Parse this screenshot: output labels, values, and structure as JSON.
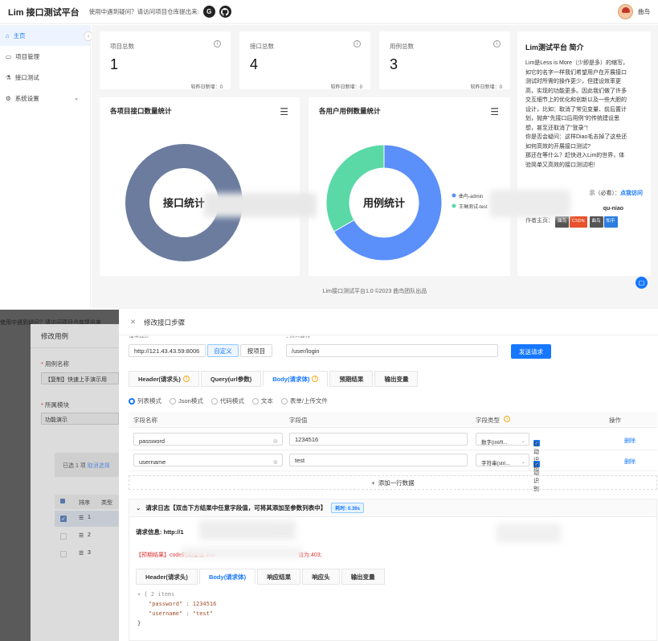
{
  "app": {
    "title": "Lim 接口测试平台",
    "tip": "使用中遇到疑问？请访问项目仓库提出来:",
    "github_glyph": "G",
    "user": "曲鸟"
  },
  "sidebar": {
    "collapse_glyph": "‹",
    "items": [
      {
        "icon": "⌂",
        "label": "主页",
        "icon_name": "home-icon"
      },
      {
        "icon": "▭",
        "label": "项目管理",
        "icon_name": "project-icon"
      },
      {
        "icon": "⚗",
        "label": "接口测试",
        "icon_name": "api-test-icon"
      },
      {
        "icon": "⚙",
        "label": "系统设置",
        "icon_name": "settings-icon",
        "arrow": "⌄"
      }
    ]
  },
  "stats": [
    {
      "title": "项目总数",
      "value": "1",
      "foot": "较昨日新增：0"
    },
    {
      "title": "接口总数",
      "value": "4",
      "foot": "较昨日新增：0"
    },
    {
      "title": "用例总数",
      "value": "3",
      "foot": "较昨日新增：0"
    }
  ],
  "info_glyph": "i",
  "charts": [
    {
      "title": "各项目接口数量统计",
      "center": "接口统计",
      "menu": "☰"
    },
    {
      "title": "各用户用例数量统计",
      "center": "用例统计",
      "menu": "☰",
      "legend": [
        "曲鸟-admin",
        "王琳测试-test"
      ]
    }
  ],
  "chart_data": [
    {
      "type": "pie",
      "title": "各项目接口数量统计",
      "labels": [
        ""
      ],
      "values": [
        4
      ],
      "colors": [
        "#6b7c9e"
      ]
    },
    {
      "type": "pie",
      "title": "各用户用例数量统计",
      "labels": [
        "曲鸟-admin",
        "王琳测试-test"
      ],
      "values": [
        2,
        1
      ],
      "colors": [
        "#5b8ff9",
        "#5ad8a6"
      ]
    }
  ],
  "intro": {
    "title": "Lim测试平台 简介",
    "lines": [
      "Lim是Less is More（少即是多）的缩写，",
      "如它的名字一样我们希望用户在开展接口",
      "测试时所需的操作更少，但建设效率更",
      "高，实现的功能更多。因此我们做了许多",
      "交互细节上的优化和创新以及一些大胆的",
      "设计，比如：取消了常见变量、前后置计",
      "划，抛弃\"先接口后用例\"的传统建设思",
      "想，甚至还取消了\"登录\"！",
      "你是否会疑问：这样Diao毛去掉了这些还",
      "如何高效的开展接口测试?",
      "那还在等什么？赶快进入Lim的世界，体",
      "验简单又高效的接口测试吧！"
    ],
    "link_prefix": "示（必看）：",
    "link_text": "点我访问",
    "author_name": "qu-niao",
    "author_label": "作者主页：",
    "tags": [
      {
        "a": "曲鸟",
        "b": "CSDN"
      },
      {
        "a": "曲鸟",
        "b": "知乎"
      }
    ]
  },
  "footer": "Lim接口测试平台1.0 ©2023 曲鸟团队出品",
  "bg_modal": {
    "title": "修改用例",
    "frag_top": "使用中遇到疑问？请访问项目仓库提出来",
    "f1": "用例名称",
    "f1v": "【复制】快速上手演示用",
    "f2": "所属模块",
    "f2v": "功能演示",
    "sel": "已选 1 项",
    "sel_link": "取消选择",
    "th": [
      "排序",
      "类型"
    ],
    "rows": [
      "1",
      "2",
      "3"
    ],
    "row_glyph": "☰"
  },
  "drawer": {
    "close_glyph": "✕",
    "title": "修改接口步骤",
    "url_label": "请求地址",
    "host": "http://121.43.43.59:8006",
    "custom": "自定义",
    "by_project": "按项目",
    "path_label": "* 接口路径",
    "path": "/user/login",
    "send": "发送请求",
    "tabs": [
      {
        "label": "Header(请求头)",
        "badge": "!"
      },
      {
        "label": "Query(url参数)"
      },
      {
        "label": "Body(请求体)",
        "badge": "!"
      },
      {
        "label": "预期结果"
      },
      {
        "label": "输出变量"
      }
    ],
    "body_modes": [
      "列表模式",
      "Json模式",
      "代码模式",
      "文本",
      "表单/上传文件"
    ],
    "cols": [
      "字段名称",
      "字段值",
      "字段类型",
      "操作"
    ],
    "rows": [
      {
        "name": "password",
        "value": "1234516",
        "type": "数字(int/fl...",
        "auto": "自动识别",
        "op": "删除"
      },
      {
        "name": "username",
        "value": "test",
        "type": "字符串(stri...",
        "auto": "自动识别",
        "op": "删除"
      }
    ],
    "clear_glyph": "⊗",
    "select_arrow": "⌄",
    "check_glyph": "✓",
    "add_glyph": "+",
    "add": "添加一行数据",
    "log_arrow": "⌄",
    "log_title": "请求日志【双击下方结果中任意字段值，可将其添加至参数列表中】",
    "log_time": "耗时: 0.39s",
    "req_info_label": "请求信息: http://1",
    "expect": "【预期结果】code的期望值:200",
    "expect_tail": "值为:403;",
    "rtabs": [
      "Header(请求头)",
      "Body(请求体)",
      "响应结果",
      "响应头",
      "输出变量"
    ],
    "json_lines": [
      "▾ { 2 items",
      "\"password\" : 1234516",
      "\"username\" : \"test\"",
      "}"
    ]
  }
}
